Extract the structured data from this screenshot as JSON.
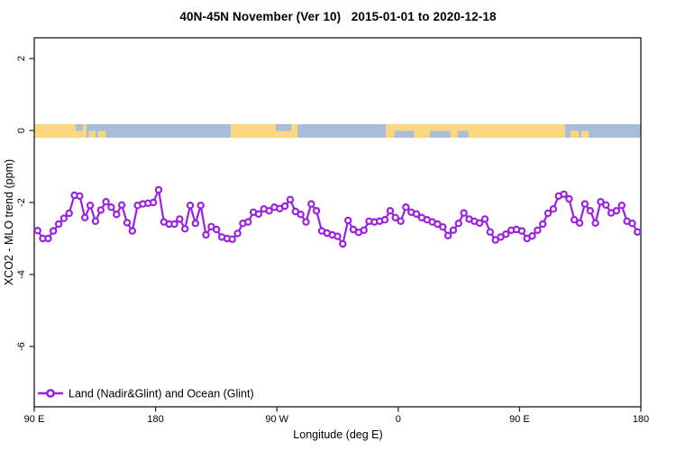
{
  "title": "40N-45N November (Ver 10)   2015-01-01 to 2020-12-18",
  "chart_data": {
    "type": "line",
    "title": "40N-45N November (Ver 10)   2015-01-01 to 2020-12-18",
    "xlabel": "Longitude (deg E)",
    "ylabel": "XCO2 - MLO trend (ppm)",
    "x_tick_labels": [
      "90 E",
      "180",
      "90 W",
      "0",
      "90 E",
      "180"
    ],
    "x_tick_degrees": [
      90,
      180,
      270,
      360,
      450,
      540
    ],
    "xlim_degrees": [
      90,
      540
    ],
    "y_ticks": [
      2,
      0,
      -2,
      -4,
      -6
    ],
    "y_tick_labels": [
      "2",
      "0",
      "-2",
      "-4",
      "-6"
    ],
    "ylim": [
      -7.68,
      2.58
    ],
    "grid": false,
    "axis_color": "#2b2b2b",
    "legend": {
      "position": "bottom-left",
      "entries": [
        {
          "label": "Land (Nadir&Glint) and Ocean (Glint)",
          "color": "#9B21DE",
          "marker": "open-circle-on-line"
        }
      ]
    },
    "series": [
      {
        "name": "Land (Nadir&Glint) and Ocean (Glint)",
        "color": "#9B21DE",
        "marker": "open-circle",
        "lon_start_deg": 92.5,
        "lon_step_deg": 3.9,
        "values": [
          -2.78,
          -3.0,
          -3.0,
          -2.79,
          -2.6,
          -2.44,
          -2.3,
          -1.8,
          -1.82,
          -2.42,
          -2.08,
          -2.52,
          -2.21,
          -1.98,
          -2.13,
          -2.33,
          -2.07,
          -2.56,
          -2.79,
          -2.08,
          -2.04,
          -2.02,
          -2.0,
          -1.65,
          -2.54,
          -2.6,
          -2.6,
          -2.46,
          -2.73,
          -2.08,
          -2.58,
          -2.08,
          -2.9,
          -2.67,
          -2.75,
          -2.96,
          -3.0,
          -3.02,
          -2.86,
          -2.58,
          -2.54,
          -2.27,
          -2.32,
          -2.18,
          -2.23,
          -2.13,
          -2.17,
          -2.1,
          -1.92,
          -2.25,
          -2.33,
          -2.54,
          -2.04,
          -2.23,
          -2.79,
          -2.85,
          -2.9,
          -2.94,
          -3.15,
          -2.5,
          -2.75,
          -2.83,
          -2.77,
          -2.52,
          -2.54,
          -2.52,
          -2.48,
          -2.23,
          -2.42,
          -2.52,
          -2.13,
          -2.27,
          -2.32,
          -2.42,
          -2.48,
          -2.54,
          -2.6,
          -2.68,
          -2.92,
          -2.77,
          -2.58,
          -2.29,
          -2.46,
          -2.52,
          -2.57,
          -2.46,
          -2.82,
          -3.04,
          -2.96,
          -2.88,
          -2.77,
          -2.75,
          -2.79,
          -3.0,
          -2.93,
          -2.77,
          -2.6,
          -2.3,
          -2.18,
          -1.82,
          -1.77,
          -1.9,
          -2.48,
          -2.57,
          -2.04,
          -2.23,
          -2.57,
          -1.98,
          -2.07,
          -2.29,
          -2.23,
          -2.08,
          -2.52,
          -2.58,
          -2.82
        ]
      }
    ],
    "map_band": {
      "description": "land/ocean strip along 40N-45N drawn at y = 0",
      "land_color": "#FBD77D",
      "ocean_color": "#A9BEDB",
      "center_value": 0,
      "segments": [
        {
          "from_frac": 0.0,
          "to_frac": 0.086,
          "surface": "land"
        },
        {
          "from_frac": 0.086,
          "to_frac": 0.324,
          "surface": "ocean"
        },
        {
          "from_frac": 0.324,
          "to_frac": 0.434,
          "surface": "land"
        },
        {
          "from_frac": 0.434,
          "to_frac": 0.58,
          "surface": "ocean"
        },
        {
          "from_frac": 0.58,
          "to_frac": 0.875,
          "surface": "land"
        },
        {
          "from_frac": 0.875,
          "to_frac": 1.0,
          "surface": "ocean"
        }
      ],
      "patches": [
        {
          "from_frac": 0.068,
          "to_frac": 0.08,
          "surface": "ocean",
          "half": "top"
        },
        {
          "from_frac": 0.09,
          "to_frac": 0.101,
          "surface": "land",
          "half": "bottom"
        },
        {
          "from_frac": 0.105,
          "to_frac": 0.118,
          "surface": "land",
          "half": "bottom"
        },
        {
          "from_frac": 0.398,
          "to_frac": 0.424,
          "surface": "ocean",
          "half": "top"
        },
        {
          "from_frac": 0.594,
          "to_frac": 0.626,
          "surface": "ocean",
          "half": "bottom"
        },
        {
          "from_frac": 0.652,
          "to_frac": 0.686,
          "surface": "ocean",
          "half": "bottom"
        },
        {
          "from_frac": 0.698,
          "to_frac": 0.716,
          "surface": "ocean",
          "half": "bottom"
        },
        {
          "from_frac": 0.884,
          "to_frac": 0.898,
          "surface": "land",
          "half": "bottom"
        },
        {
          "from_frac": 0.902,
          "to_frac": 0.914,
          "surface": "land",
          "half": "bottom"
        }
      ]
    }
  }
}
